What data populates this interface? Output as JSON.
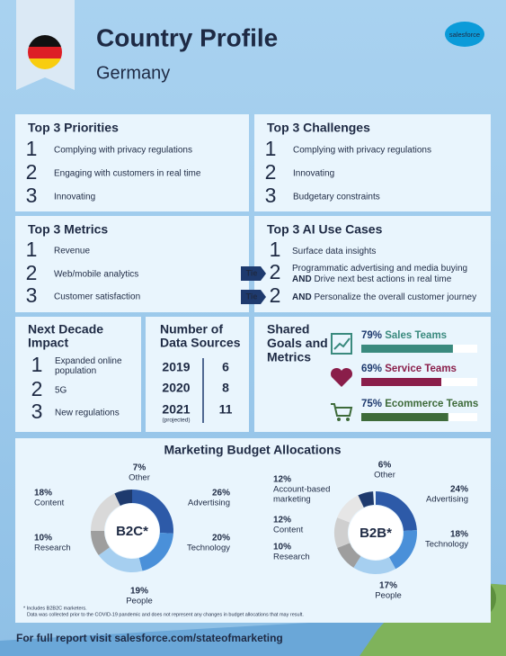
{
  "header": {
    "title": "Country Profile",
    "subtitle": "Germany",
    "logo": "salesforce"
  },
  "priorities": {
    "title": "Top 3 Priorities",
    "items": [
      {
        "rank": 1,
        "text": "Complying with privacy regulations"
      },
      {
        "rank": 2,
        "text": "Engaging with customers in real time"
      },
      {
        "rank": 3,
        "text": "Innovating"
      }
    ]
  },
  "challenges": {
    "title": "Top 3 Challenges",
    "items": [
      {
        "rank": 1,
        "text": "Complying with privacy regulations"
      },
      {
        "rank": 2,
        "text": "Innovating"
      },
      {
        "rank": 3,
        "text": "Budgetary constraints"
      }
    ]
  },
  "metrics": {
    "title": "Top 3 Metrics",
    "items": [
      {
        "rank": 1,
        "text": "Revenue"
      },
      {
        "rank": 2,
        "text": "Web/mobile analytics"
      },
      {
        "rank": 3,
        "text": "Customer satisfaction"
      }
    ]
  },
  "ai_use_cases": {
    "title": "Top 3 AI Use Cases",
    "items": [
      {
        "rank": 1,
        "lines": [
          {
            "text": "Surface data insights"
          }
        ]
      },
      {
        "rank": 2,
        "tag": "Tie",
        "lines": [
          {
            "text": "Programmatic advertising and media buying"
          },
          {
            "emph": "AND",
            "text": "Drive next best actions in real time"
          }
        ]
      },
      {
        "rank": 2,
        "tag": "Tie",
        "lines": [
          {
            "emph": "AND",
            "text": "Personalize the overall customer journey"
          }
        ]
      }
    ]
  },
  "next_decade": {
    "title_lines": [
      "Next Decade",
      "Impact"
    ],
    "items": [
      {
        "rank": 1,
        "lines": [
          "Expanded online",
          "population"
        ]
      },
      {
        "rank": 2,
        "lines": [
          "5G"
        ]
      },
      {
        "rank": 3,
        "lines": [
          "New regulations"
        ]
      }
    ]
  },
  "data_sources": {
    "title_lines": [
      "Number of",
      "Data Sources"
    ],
    "rows": [
      {
        "year": 2019,
        "count": 6
      },
      {
        "year": 2020,
        "count": 8
      },
      {
        "year": 2021,
        "note": "(projected)",
        "count": 11
      }
    ]
  },
  "shared_goals": {
    "title_lines": [
      "Shared",
      "Goals and",
      "Metrics"
    ],
    "bars": [
      {
        "value": 79,
        "value_label": "79%",
        "name": "Sales Teams",
        "color": "#3a8a7e"
      },
      {
        "value": 69,
        "value_label": "69%",
        "name": "Service Teams",
        "color": "#8a1e4a"
      },
      {
        "value": 75,
        "value_label": "75%",
        "name": "Ecommerce Teams",
        "color": "#3e6b3a"
      }
    ]
  },
  "budget": {
    "title": "Marketing Budget Allocations",
    "charts": [
      {
        "center": "B2C*",
        "segments": [
          {
            "name": "Advertising",
            "value": 26,
            "value_label": "26%",
            "color": "#2d5aa8"
          },
          {
            "name": "Technology",
            "value": 20,
            "value_label": "20%",
            "color": "#4a90d9"
          },
          {
            "name": "People",
            "value": 19,
            "value_label": "19%",
            "color": "#a6cff0"
          },
          {
            "name": "Research",
            "value": 10,
            "value_label": "10%",
            "color": "#9e9e9e"
          },
          {
            "name": "Content",
            "value": 18,
            "value_label": "18%",
            "color": "#d9d9d9"
          },
          {
            "name": "Other",
            "value": 7,
            "value_label": "7%",
            "color": "#1e3a6e"
          }
        ]
      },
      {
        "center": "B2B*",
        "segments": [
          {
            "name": "Advertising",
            "value": 24,
            "value_label": "24%",
            "color": "#2d5aa8"
          },
          {
            "name": "Technology",
            "value": 18,
            "value_label": "18%",
            "color": "#4a90d9"
          },
          {
            "name": "People",
            "value": 17,
            "value_label": "17%",
            "color": "#a6cff0"
          },
          {
            "name": "Research",
            "value": 10,
            "value_label": "10%",
            "color": "#9e9e9e"
          },
          {
            "name": "Content",
            "value": 12,
            "value_label": "12%",
            "color": "#cfcfcf"
          },
          {
            "name_lines": [
              "Account-based",
              "marketing"
            ],
            "value": 12,
            "value_label": "12%",
            "color": "#e6e6e6"
          },
          {
            "name": "Other",
            "value": 6,
            "value_label": "6%",
            "color": "#1e3a6e"
          }
        ]
      }
    ]
  },
  "footnotes": [
    "* Includes B2B2C marketers.",
    "Data was collected prior to the COVID-19 pandemic and does not represent any changes in budget allocations that may result."
  ],
  "footer": "For full report visit salesforce.com/stateofmarketing"
}
